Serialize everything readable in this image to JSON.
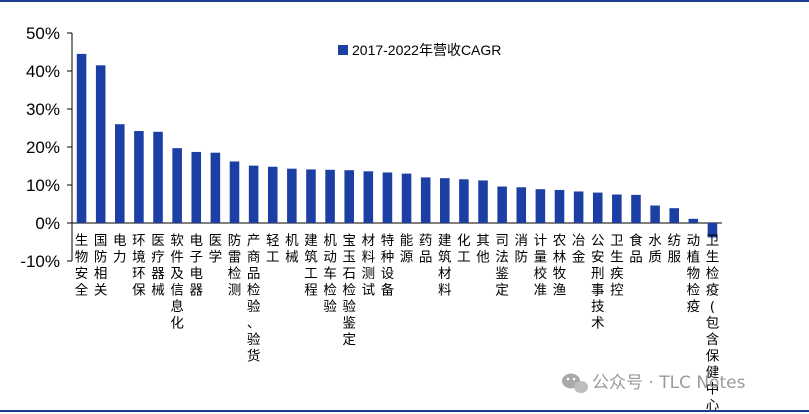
{
  "colors": {
    "bar": "#1c3fa3",
    "frame": "#1f3d8f",
    "axis": "#000000",
    "watermark": "#9a9a9a"
  },
  "watermark": {
    "icon": "wechat-icon",
    "text": "公众号 · TLC Notes"
  },
  "chart_data": {
    "type": "bar",
    "title": "",
    "xlabel": "",
    "ylabel": "",
    "ylim": [
      -10,
      50
    ],
    "yticks": [
      -10,
      0,
      10,
      20,
      30,
      40,
      50
    ],
    "ytick_labels": [
      "-10%",
      "0%",
      "10%",
      "20%",
      "30%",
      "40%",
      "50%"
    ],
    "legend_position": "top-center",
    "grid": false,
    "series": [
      {
        "name": "2017-2022年营收CAGR",
        "values": [
          44.5,
          41.5,
          26.0,
          24.2,
          24.0,
          19.7,
          18.7,
          18.5,
          16.2,
          15.1,
          14.8,
          14.3,
          14.1,
          14.0,
          13.9,
          13.6,
          13.3,
          13.0,
          12.0,
          11.8,
          11.5,
          11.2,
          9.6,
          9.4,
          8.9,
          8.7,
          8.3,
          8.0,
          7.5,
          7.4,
          4.6,
          3.9,
          1.1,
          -3.8
        ]
      }
    ],
    "categories": [
      "生物安全",
      "国防相关",
      "电力",
      "环境环保",
      "医疗器械",
      "软件及信息化",
      "电子电器",
      "医学",
      "防雷检测",
      "产商品检验、验货",
      "轻工",
      "机械",
      "建筑工程",
      "机动车检验",
      "宝玉石检验鉴定",
      "材料测试",
      "特种设备",
      "能源",
      "药品",
      "建筑材料",
      "化工",
      "其他",
      "司法鉴定",
      "消防",
      "计量校准",
      "农林牧渔",
      "冶金",
      "公安刑事技术",
      "卫生疾控",
      "食品",
      "水质",
      "纺服",
      "动植物检疫",
      "卫生检疫(包含保健中心)"
    ]
  }
}
